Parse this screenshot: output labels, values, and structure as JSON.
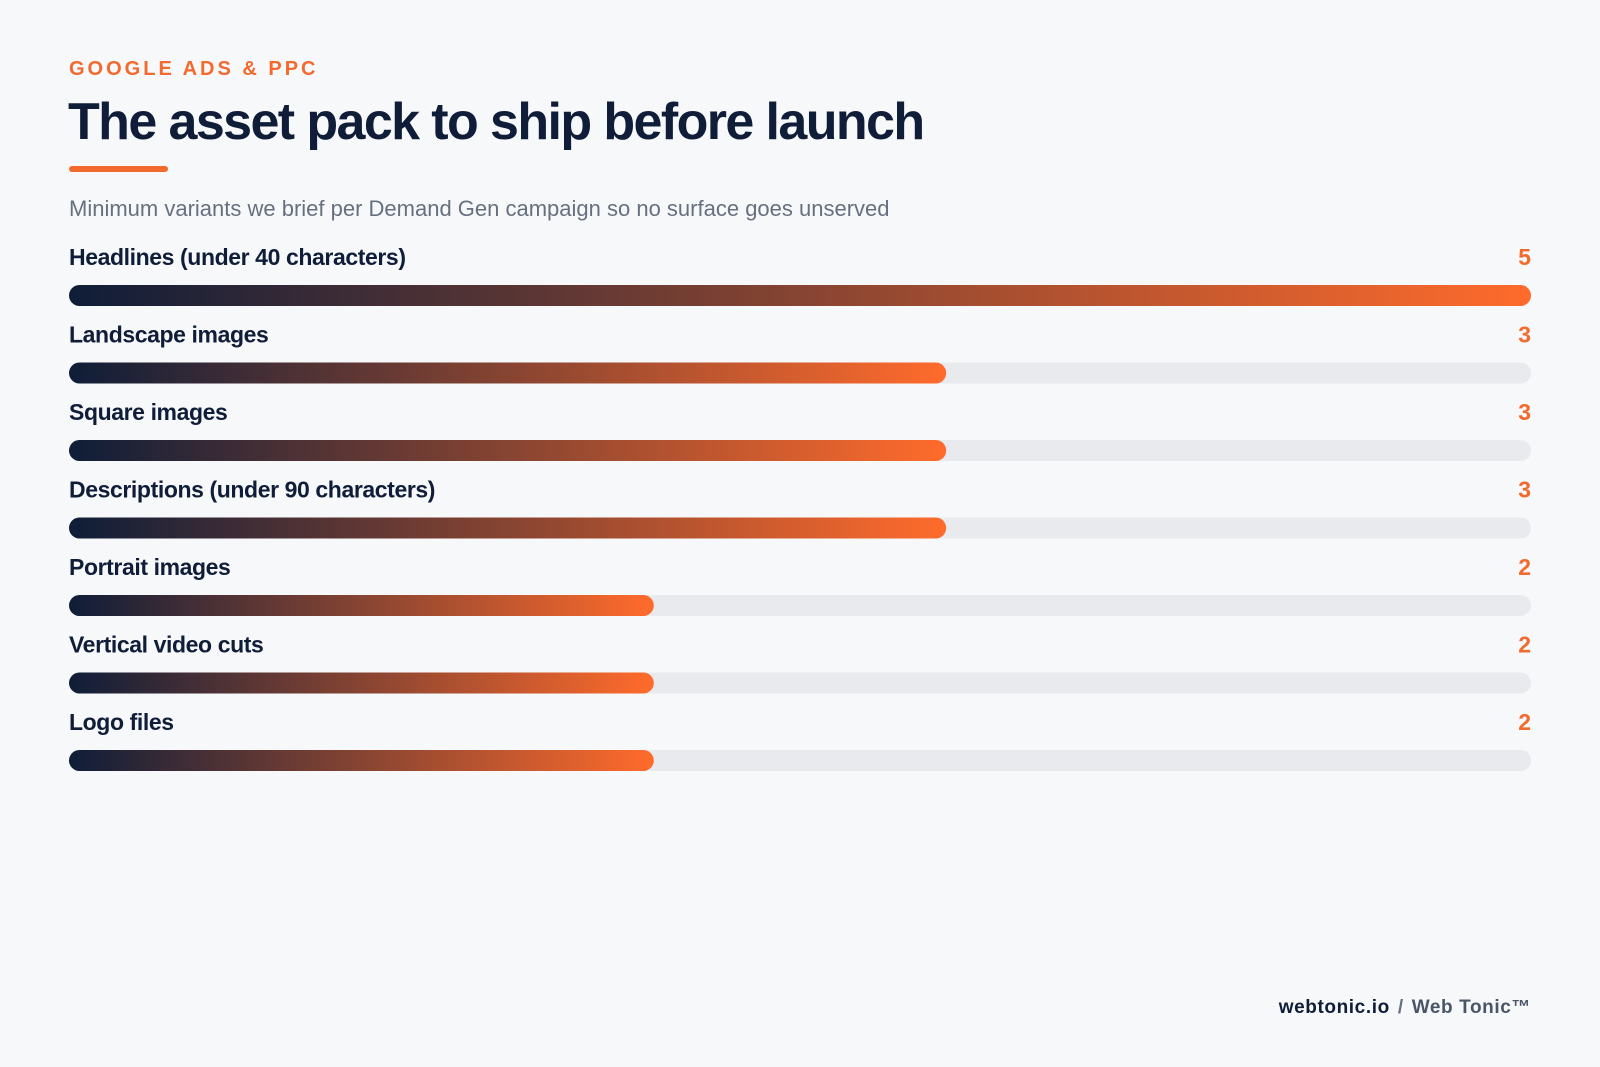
{
  "header": {
    "eyebrow": "GOOGLE ADS & PPC",
    "title": "The asset pack to ship before launch",
    "subtitle": "Minimum variants we brief per Demand Gen campaign so no surface goes unserved"
  },
  "chart_data": {
    "type": "bar",
    "orientation": "horizontal",
    "categories": [
      "Headlines (under 40 characters)",
      "Landscape images",
      "Square images",
      "Descriptions (under 90 characters)",
      "Portrait images",
      "Vertical video cuts",
      "Logo files"
    ],
    "values": [
      5,
      3,
      3,
      3,
      2,
      2,
      2
    ],
    "xlim": [
      0,
      5
    ],
    "grid": false,
    "legend": "none",
    "colors": {
      "gradient_start": "#0f1d38",
      "gradient_end": "#ff6b2c",
      "track": "#e8eaee",
      "value": "#f26a2e",
      "label": "#0f1d38"
    }
  },
  "footer": {
    "site": "webtonic.io",
    "separator": "/",
    "brand": "Web Tonic™"
  }
}
